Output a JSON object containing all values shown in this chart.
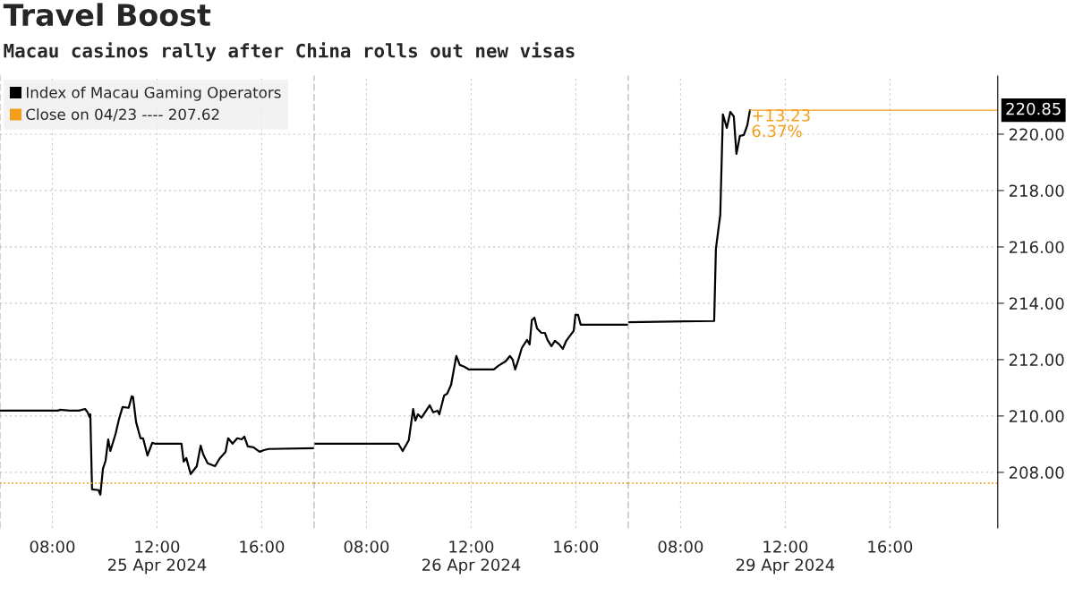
{
  "chart_data": [
    {
      "type": "line",
      "title": "Travel Boost",
      "subtitle": "Macau casinos rally after China rolls out new visas",
      "x": [
        "2024-04-25T06:00",
        "2024-04-25T08:13",
        "2024-04-25T08:17",
        "2024-04-25T08:40",
        "2024-04-25T09:01",
        "2024-04-25T09:15",
        "2024-04-25T09:21",
        "2024-04-25T09:25",
        "2024-04-25T09:27",
        "2024-04-25T09:31",
        "2024-04-25T09:46",
        "2024-04-25T09:50",
        "2024-04-25T09:56",
        "2024-04-25T10:02",
        "2024-04-25T10:08",
        "2024-04-25T10:13",
        "2024-04-25T10:25",
        "2024-04-25T10:33",
        "2024-04-25T10:41",
        "2024-04-25T10:55",
        "2024-04-25T11:02",
        "2024-04-25T11:05",
        "2024-04-25T11:12",
        "2024-04-25T11:22",
        "2024-04-25T11:28",
        "2024-04-25T11:38",
        "2024-04-25T11:49",
        "2024-04-25T11:55",
        "2024-04-25T12:05",
        "2024-04-25T12:56",
        "2024-04-25T13:01",
        "2024-04-25T13:07",
        "2024-04-25T13:17",
        "2024-04-25T13:31",
        "2024-04-25T13:40",
        "2024-04-25T13:46",
        "2024-04-25T13:56",
        "2024-04-25T14:13",
        "2024-04-25T14:23",
        "2024-04-25T14:37",
        "2024-04-25T14:43",
        "2024-04-25T14:53",
        "2024-04-25T15:04",
        "2024-04-25T15:14",
        "2024-04-25T15:20",
        "2024-04-25T15:28",
        "2024-04-25T15:41",
        "2024-04-25T15:55",
        "2024-04-25T16:05",
        "2024-04-25T16:16",
        "2024-04-25T18:00"
      ],
      "series": [
        {
          "name": "Index of Macau Gaming Operators",
          "color": "#000000",
          "values": [
            210.19,
            210.19,
            210.22,
            210.19,
            210.19,
            210.25,
            210.13,
            209.97,
            210.06,
            207.4,
            207.37,
            207.21,
            208.13,
            208.41,
            209.17,
            208.76,
            209.37,
            209.9,
            210.32,
            210.29,
            210.7,
            210.67,
            209.78,
            209.21,
            209.21,
            208.6,
            209.05,
            209.02,
            209.02,
            209.02,
            208.38,
            208.51,
            207.94,
            208.22,
            208.95,
            208.63,
            208.32,
            208.22,
            208.48,
            208.73,
            209.21,
            209.02,
            209.21,
            209.17,
            209.27,
            208.92,
            208.89,
            208.73,
            208.79,
            208.83,
            208.86
          ]
        }
      ],
      "xlim": [
        "2024-04-25T06:00",
        "2024-04-25T18:00"
      ],
      "xticks": [
        {
          "value": "2024-04-25T08:00",
          "label": "08:00"
        },
        {
          "value": "2024-04-25T12:00",
          "label": "12:00\n25 Apr 2024"
        },
        {
          "value": "2024-04-25T16:00",
          "label": "16:00"
        }
      ],
      "ylim": [
        206.03,
        222.06
      ],
      "yticks": [
        {
          "value": 208,
          "label": null
        },
        {
          "value": 210,
          "label": null
        },
        {
          "value": 212,
          "label": null
        },
        {
          "value": 214,
          "label": null
        },
        {
          "value": 216,
          "label": null
        },
        {
          "value": 218,
          "label": null
        },
        {
          "value": 220,
          "label": null
        }
      ],
      "tick_labels": "x",
      "ref_lines": [
        {
          "axis": "y",
          "value": 207.62,
          "label": "Close on 04/23 ---- 207.62",
          "color": "#f39f1c",
          "line_style": "dotted"
        }
      ],
      "grid": true,
      "legend": "top left",
      "line_style": "solid",
      "marker": "none"
    },
    {
      "type": "line",
      "x": [
        "2024-04-26T06:00",
        "2024-04-26T09:13",
        "2024-04-26T09:23",
        "2024-04-26T09:37",
        "2024-04-26T09:47",
        "2024-04-26T09:52",
        "2024-04-26T09:58",
        "2024-04-26T10:06",
        "2024-04-26T10:25",
        "2024-04-26T10:33",
        "2024-04-26T10:43",
        "2024-04-26T10:47",
        "2024-04-26T10:58",
        "2024-04-26T11:05",
        "2024-04-26T11:14",
        "2024-04-26T11:26",
        "2024-04-26T11:34",
        "2024-04-26T11:44",
        "2024-04-26T11:55",
        "2024-04-26T12:52",
        "2024-04-26T13:02",
        "2024-04-26T13:19",
        "2024-04-26T13:29",
        "2024-04-26T13:35",
        "2024-04-26T13:41",
        "2024-04-26T13:47",
        "2024-04-26T13:56",
        "2024-04-26T14:08",
        "2024-04-26T14:14",
        "2024-04-26T14:19",
        "2024-04-26T14:25",
        "2024-04-26T14:31",
        "2024-04-26T14:41",
        "2024-04-26T14:49",
        "2024-04-26T14:55",
        "2024-04-26T15:04",
        "2024-04-26T15:12",
        "2024-04-26T15:22",
        "2024-04-26T15:30",
        "2024-04-26T15:38",
        "2024-04-26T15:47",
        "2024-04-26T15:55",
        "2024-04-26T15:59",
        "2024-04-26T16:05",
        "2024-04-26T16:11",
        "2024-04-26T18:00"
      ],
      "series": [
        {
          "color": "#000000",
          "values": [
            209.02,
            209.02,
            208.76,
            209.14,
            210.25,
            209.84,
            210.06,
            209.94,
            210.38,
            210.13,
            210.19,
            210.06,
            210.73,
            210.79,
            211.11,
            212.13,
            211.81,
            211.75,
            211.65,
            211.65,
            211.78,
            211.94,
            212.13,
            212.0,
            211.65,
            211.94,
            212.41,
            212.7,
            212.54,
            213.4,
            213.49,
            213.11,
            212.95,
            212.95,
            212.7,
            212.48,
            212.67,
            212.54,
            212.38,
            212.67,
            212.86,
            213.02,
            213.59,
            213.59,
            213.24,
            213.24
          ]
        }
      ],
      "xlim": [
        "2024-04-26T06:00",
        "2024-04-26T18:00"
      ],
      "xticks": [
        {
          "value": "2024-04-26T08:00",
          "label": "08:00"
        },
        {
          "value": "2024-04-26T12:00",
          "label": "12:00\n26 Apr 2024"
        },
        {
          "value": "2024-04-26T16:00",
          "label": "16:00"
        }
      ],
      "ylim": [
        206.03,
        222.06
      ],
      "yticks": [
        {
          "value": 208,
          "label": null
        },
        {
          "value": 210,
          "label": null
        },
        {
          "value": 212,
          "label": null
        },
        {
          "value": 214,
          "label": null
        },
        {
          "value": 216,
          "label": null
        },
        {
          "value": 218,
          "label": null
        },
        {
          "value": 220,
          "label": null
        }
      ],
      "tick_labels": "x",
      "ref_lines": [
        {
          "axis": "y",
          "value": 207.62,
          "color": "#f39f1c",
          "line_style": "dotted"
        }
      ],
      "grid": true,
      "line_style": "solid",
      "marker": "none"
    },
    {
      "type": "line",
      "x": [
        "2024-04-29T06:00",
        "2024-04-29T09:17",
        "2024-04-29T09:21",
        "2024-04-29T09:31",
        "2024-04-29T09:37",
        "2024-04-29T09:46",
        "2024-04-29T09:54",
        "2024-04-29T10:02",
        "2024-04-29T10:08",
        "2024-04-29T10:16",
        "2024-04-29T10:25",
        "2024-04-29T10:33",
        "2024-04-29T10:39"
      ],
      "series": [
        {
          "color": "#000000",
          "values": [
            213.33,
            213.37,
            215.94,
            217.14,
            220.7,
            220.22,
            220.79,
            220.63,
            219.3,
            219.94,
            219.97,
            220.32,
            220.85
          ]
        }
      ],
      "xlim": [
        "2024-04-29T06:00",
        "2024-04-29T20:07"
      ],
      "xticks": [
        {
          "value": "2024-04-29T08:00",
          "label": "08:00"
        },
        {
          "value": "2024-04-29T12:00",
          "label": "12:00\n29 Apr 2024"
        },
        {
          "value": "2024-04-29T16:00",
          "label": "16:00"
        }
      ],
      "ylim": [
        206.03,
        222.06
      ],
      "yticks": [
        {
          "value": 208,
          "label": "208.00"
        },
        {
          "value": 210,
          "label": "210.00"
        },
        {
          "value": 212,
          "label": "212.00"
        },
        {
          "value": 214,
          "label": "214.00"
        },
        {
          "value": 216,
          "label": "216.00"
        },
        {
          "value": 218,
          "label": "218.00"
        },
        {
          "value": 220,
          "label": "220.00"
        }
      ],
      "ref_lines": [
        {
          "axis": "y",
          "value": 207.62,
          "color": "#f39f1c",
          "line_style": "dotted"
        },
        {
          "axis": "y",
          "value": 220.85,
          "label": "220.85",
          "color": "#f39f1c",
          "line_style": "solid"
        }
      ],
      "annotations": [
        {
          "text": "+13.23\n6.37%",
          "x": "2024-04-29T10:39",
          "y": 220.85
        }
      ],
      "grid": true,
      "line_style": "solid",
      "marker": "none"
    }
  ]
}
